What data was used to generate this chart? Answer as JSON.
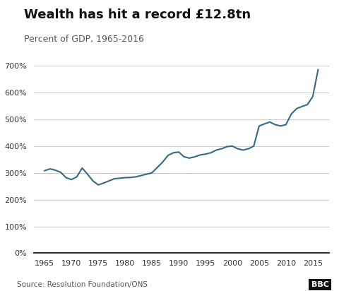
{
  "title": "Wealth has hit a record £12.8tn",
  "subtitle": "Percent of GDP, 1965-2016",
  "source": "Source: Resolution Foundation/ONS",
  "bbc_label": "BBC",
  "line_color": "#336b87",
  "background_color": "#ffffff",
  "grid_color": "#cccccc",
  "years": [
    1965,
    1966,
    1967,
    1968,
    1969,
    1970,
    1971,
    1972,
    1973,
    1974,
    1975,
    1976,
    1977,
    1978,
    1979,
    1980,
    1981,
    1982,
    1983,
    1984,
    1985,
    1986,
    1987,
    1988,
    1989,
    1990,
    1991,
    1992,
    1993,
    1994,
    1995,
    1996,
    1997,
    1998,
    1999,
    2000,
    2001,
    2002,
    2003,
    2004,
    2005,
    2006,
    2007,
    2008,
    2009,
    2010,
    2011,
    2012,
    2013,
    2014,
    2015,
    2016
  ],
  "values": [
    308,
    315,
    310,
    302,
    282,
    275,
    285,
    318,
    295,
    270,
    255,
    262,
    270,
    278,
    280,
    282,
    283,
    285,
    290,
    295,
    300,
    320,
    340,
    365,
    375,
    378,
    360,
    355,
    360,
    367,
    370,
    375,
    385,
    390,
    398,
    400,
    390,
    385,
    390,
    400,
    475,
    483,
    490,
    480,
    475,
    480,
    520,
    540,
    548,
    555,
    585,
    685
  ],
  "ylim": [
    0,
    750
  ],
  "yticks": [
    0,
    100,
    200,
    300,
    400,
    500,
    600,
    700
  ],
  "xlim": [
    1963,
    2018
  ],
  "xticks": [
    1965,
    1970,
    1975,
    1980,
    1985,
    1990,
    1995,
    2000,
    2005,
    2010,
    2015
  ]
}
